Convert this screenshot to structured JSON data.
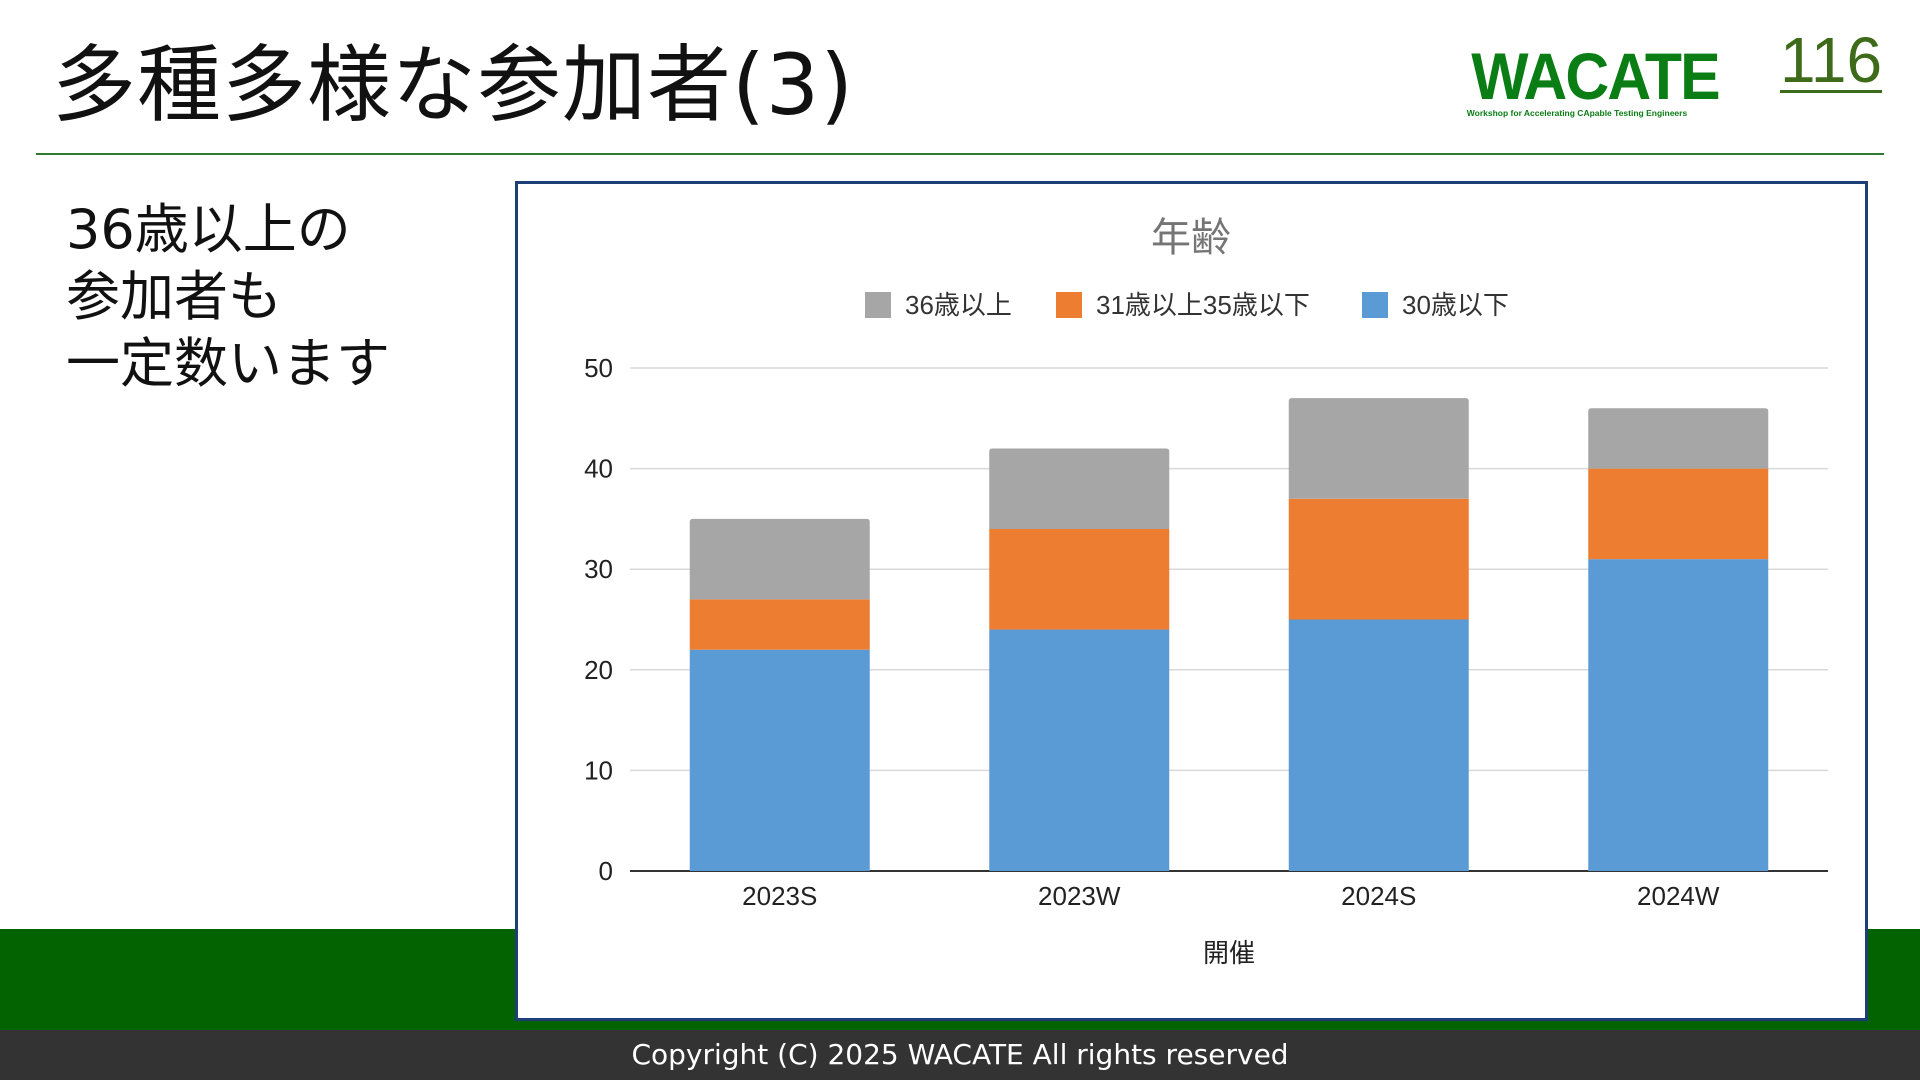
{
  "slide": {
    "title": "多種多様な参加者(3)",
    "page_number": "116",
    "body_lines": [
      "36歳以上の",
      "参加者も",
      "一定数います"
    ],
    "footer": "Copyright (C) 2025 WACATE All rights reserved"
  },
  "logo": {
    "main_text": "WACATE",
    "sub_text": "Workshop for Accelerating CApable Testing Engineers"
  },
  "colors": {
    "accent_green": "#036300",
    "series_over36": "#a6a6a6",
    "series_31_35": "#ed7d31",
    "series_under30": "#5b9bd5"
  },
  "chart_data": {
    "type": "bar",
    "stacked": true,
    "title": "年齢",
    "xlabel": "開催",
    "ylabel": "",
    "categories": [
      "2023S",
      "2023W",
      "2024S",
      "2024W"
    ],
    "series": [
      {
        "name": "30歳以下",
        "color": "#5b9bd5",
        "values": [
          22,
          24,
          25,
          31
        ]
      },
      {
        "name": "31歳以上35歳以下",
        "color": "#ed7d31",
        "values": [
          5,
          10,
          12,
          9
        ]
      },
      {
        "name": "36歳以上",
        "color": "#a6a6a6",
        "values": [
          8,
          8,
          10,
          6
        ]
      }
    ],
    "legend_order": [
      "36歳以上",
      "31歳以上35歳以下",
      "30歳以下"
    ],
    "ylim": [
      0,
      50
    ],
    "yticks": [
      0,
      10,
      20,
      30,
      40,
      50
    ],
    "grid": true,
    "legend_position": "top"
  }
}
